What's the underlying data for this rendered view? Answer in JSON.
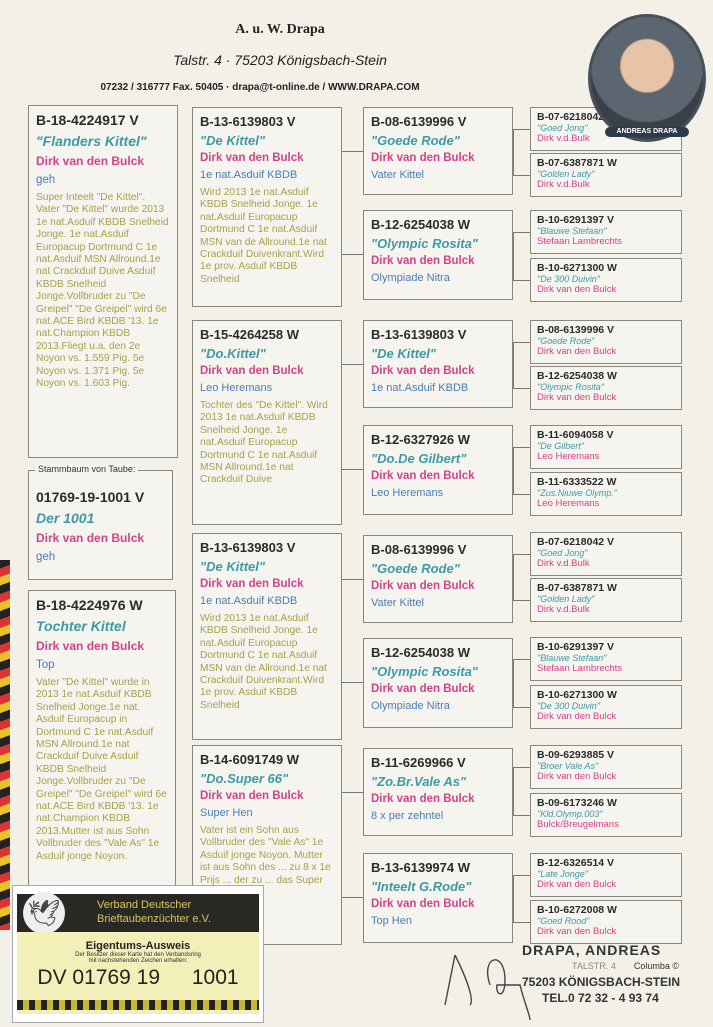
{
  "header": {
    "name": "A. u. W. Drapa",
    "address": "Talstr. 4  ·  75203 Königsbach-Stein",
    "contact": "07232 / 316777 Fax. 50405  ·  drapa@t-online.de / WWW.DRAPA.COM",
    "badge": "ANDREAS DRAPA"
  },
  "pigeon": {
    "ring": "B-18-4224917 V",
    "name": "\"Flanders  Kittel\"",
    "breeder": "Dirk van den Bulck",
    "note": "geh",
    "desc": "Super Inteelt \"De Kittel\". Vater \"De Kittel\" wurde 2013 1e nat.Asduif KBDB Snelheid Jonge. 1e nat.Asduif Europacup Dortmund C 1e nat.Asduif MSN Allround.1e nat Crackduif Duive Asduif KBDB Snelheid Jonge.Vollbruder zu \"De Greipel\" \"De Greipel\" wird 6e nat.ACE Bird KBDB '13. 1e nat.Champion KBDB 2013.Fliegt u.a. den 2e Noyon vs. 1.559 Pig. 5e Noyon vs. 1.371 Pig. 5e Noyon vs. 1.603 Pig."
  },
  "stammbaum": {
    "label": "Stammbaum von Taube:",
    "ring": "01769-19-1001 V",
    "name": "Der  1001",
    "breeder": "Dirk van den Bulck",
    "note": "geh"
  },
  "sister": {
    "ring": "B-18-4224976 W",
    "name": "Tochter  Kittel",
    "breeder": "Dirk van den Bulck",
    "note": "Top",
    "desc": "Vater \"De Kittel\" wurde in 2013 1e nat.Asduif KBDB Snelheid Jonge.1e nat. Asduif Europacup in Dortmund C 1e nat.Asduif MSN Allround.1e nat Crackduif Duive Asduif KBDB Snelheid Jonge.Vollbruder zu \"De Greipel\" \"De Greipel\" wird 6e nat.ACE Bird KBDB '13. 1e nat.Champion KBDB 2013.Mutter ist aus Sohn Vollbruder des \"Vale As\" 1e Asduif jonge Noyon."
  },
  "parents": [
    {
      "ring": "B-13-6139803 V",
      "name": "\"De Kittel\"",
      "breeder": "Dirk van den Bulck",
      "note": "1e nat.Asduif KBDB",
      "desc": "Wird 2013 1e nat.Asduif KBDB Snelheid Jonge. 1e nat.Asduif Europacup Dortmund C 1e nat.Asduif MSN van de Allround.1e nat Crackduif Duivenkrant.Wird 1e prov. Asduif KBDB Snelheid"
    },
    {
      "ring": "B-15-4264258 W",
      "name": "\"Do.Kittel\"",
      "breeder": "Dirk van den Bulck",
      "note": "Leo Heremans",
      "desc": "Tochter des \"De Kittel\". Wird 2013 1e nat.Asduif KBDB Snelheid Jonge. 1e nat.Asduif Europacup Dortmund C 1e nat.Asduif MSN Allround.1e nat Crackduif Duive"
    },
    {
      "ring": "B-13-6139803 V",
      "name": "\"De Kittel\"",
      "breeder": "Dirk van den Bulck",
      "note": "1e nat.Asduif KBDB",
      "desc": "Wird 2013 1e nat.Asduif KBDB Snelheid Jonge. 1e nat.Asduif Europacup Dortmund C 1e nat.Asduif MSN van de Allround.1e nat Crackduif Duivenkrant.Wird 1e prov. Asduif KBDB Snelheid"
    },
    {
      "ring": "B-14-6091749 W",
      "name": "\"Do.Super 66\"",
      "breeder": "Dirk van den Bulck",
      "note": "Super Hen",
      "desc": "Vater ist ein Sohn aus Vollbruder des \"Vale As\" 1e Asduif jonge Noyon. Mutter ist aus Sohn des ... zu 8 x 1e Prijs ... der zu ... das Super ... zu \"B-10 -"
    }
  ],
  "grandparents": [
    {
      "ring": "B-08-6139996 V",
      "name": "\"Goede Rode\"",
      "breeder": "Dirk van den Bulck",
      "note": "Vater Kittel"
    },
    {
      "ring": "B-12-6254038 W",
      "name": "\"Olympic Rosita\"",
      "breeder": "Dirk van den Bulck",
      "note": "Olympiade Nitra"
    },
    {
      "ring": "B-13-6139803 V",
      "name": "\"De Kittel\"",
      "breeder": "Dirk van den Bulck",
      "note": "1e nat.Asduif KBDB"
    },
    {
      "ring": "B-12-6327926 W",
      "name": "\"Do.De Gilbert\"",
      "breeder": "Dirk van den Bulck",
      "note": "Leo Heremans"
    },
    {
      "ring": "B-08-6139996 V",
      "name": "\"Goede Rode\"",
      "breeder": "Dirk van den Bulck",
      "note": "Vater Kittel"
    },
    {
      "ring": "B-12-6254038 W",
      "name": "\"Olympic Rosita\"",
      "breeder": "Dirk van den Bulck",
      "note": "Olympiade Nitra"
    },
    {
      "ring": "B-11-6269966 V",
      "name": "\"Zo.Br.Vale As\"",
      "breeder": "Dirk van den Bulck",
      "note": "8 x per zehntel"
    },
    {
      "ring": "B-13-6139974 W",
      "name": "\"Inteelt G.Rode\"",
      "breeder": "Dirk van den Bulck",
      "note": "Top Hen"
    }
  ],
  "great_grandparents": [
    {
      "ring": "B-07-6218042 V",
      "name": "\"Goed Jong\"",
      "breeder": "Dirk v.d.Bulk"
    },
    {
      "ring": "B-07-6387871 W",
      "name": "\"Golden Lady\"",
      "breeder": "Dirk v.d.Bulk"
    },
    {
      "ring": "B-10-6291397 V",
      "name": "\"Blauwe Stefaan\"",
      "breeder": "Stefaan Lambrechts"
    },
    {
      "ring": "B-10-6271300 W",
      "name": "\"De 300 Duivin\"",
      "breeder": "Dirk van den Bulck"
    },
    {
      "ring": "B-08-6139996 V",
      "name": "\"Goede Rode\"",
      "breeder": "Dirk van den Bulck"
    },
    {
      "ring": "B-12-6254038 W",
      "name": "\"Olympic Rosita\"",
      "breeder": "Dirk van den Bulck"
    },
    {
      "ring": "B-11-6094058 V",
      "name": "\"De Gilbert\"",
      "breeder": "Leo Heremans"
    },
    {
      "ring": "B-11-6333522 W",
      "name": "\"Zus.Niuwe Olymp.\"",
      "breeder": "Leo Heremans"
    },
    {
      "ring": "B-07-6218042 V",
      "name": "\"Goed Jong\"",
      "breeder": "Dirk v.d.Bulk"
    },
    {
      "ring": "B-07-6387871 W",
      "name": "\"Golden Lady\"",
      "breeder": "Dirk v.d.Bulk"
    },
    {
      "ring": "B-10-6291397 V",
      "name": "\"Blauwe Stefaan\"",
      "breeder": "Stefaan Lambrechts"
    },
    {
      "ring": "B-10-6271300 W",
      "name": "\"De 300 Duivin\"",
      "breeder": "Dirk van den Bulck"
    },
    {
      "ring": "B-09-6293885 V",
      "name": "\"Broer Vale As\"",
      "breeder": "Dirk van den Bulck"
    },
    {
      "ring": "B-09-6173246 W",
      "name": "\"Kld.Olymp.003\"",
      "breeder": "Bulck/Breugelmans"
    },
    {
      "ring": "B-12-6326514 V",
      "name": "\"Late Jonge\"",
      "breeder": "Dirk van den Bulck"
    },
    {
      "ring": "B-10-6272008 W",
      "name": "\"Goed Rood\"",
      "breeder": "Dirk van den Bulck"
    }
  ],
  "card": {
    "org1": "Verband Deutscher",
    "org2": "Brieftaubenzüchter e.V.",
    "title": "Eigentums-Ausweis",
    "text1": "Der Besitzer dieser Karte hat den Verbandsring",
    "text2": "mit nachstehenden Zeichen erhalten:",
    "ring": "DV 01769 19",
    "number": "1001"
  },
  "stamp": {
    "name": "DRAPA, ANDREAS",
    "street": "TALSTR. 4",
    "brand": "Columba ©",
    "city": "75203 KÖNIGSBACH-STEIN",
    "tel": "TEL.0 72 32 - 4 93 74"
  },
  "colors": {
    "ring": "#2b2b2b",
    "name": "#3d9aa6",
    "breeder": "#d3428a",
    "note": "#4b7cb5",
    "desc": "#a7a04c"
  }
}
